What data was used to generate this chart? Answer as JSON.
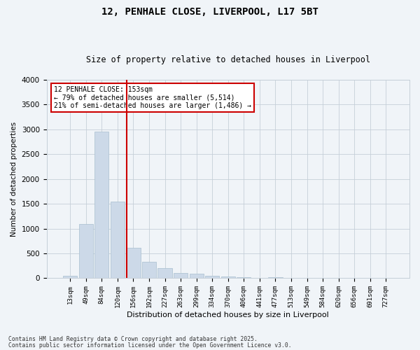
{
  "title": "12, PENHALE CLOSE, LIVERPOOL, L17 5BT",
  "subtitle": "Size of property relative to detached houses in Liverpool",
  "xlabel": "Distribution of detached houses by size in Liverpool",
  "ylabel": "Number of detached properties",
  "annotation_line1": "12 PENHALE CLOSE: 153sqm",
  "annotation_line2": "← 79% of detached houses are smaller (5,514)",
  "annotation_line3": "21% of semi-detached houses are larger (1,486) →",
  "footer_line1": "Contains HM Land Registry data © Crown copyright and database right 2025.",
  "footer_line2": "Contains public sector information licensed under the Open Government Licence v3.0.",
  "categories": [
    "13sqm",
    "49sqm",
    "84sqm",
    "120sqm",
    "156sqm",
    "192sqm",
    "227sqm",
    "263sqm",
    "299sqm",
    "334sqm",
    "370sqm",
    "406sqm",
    "441sqm",
    "477sqm",
    "513sqm",
    "549sqm",
    "584sqm",
    "620sqm",
    "656sqm",
    "691sqm",
    "727sqm"
  ],
  "values": [
    50,
    1100,
    2950,
    1550,
    620,
    330,
    210,
    100,
    95,
    55,
    35,
    20,
    10,
    20,
    5,
    3,
    2,
    1,
    1,
    1,
    1
  ],
  "bar_color": "#ccd9e8",
  "bar_edgecolor": "#a8bfce",
  "vline_color": "#cc0000",
  "vline_xindex": 3.57,
  "ylim": [
    0,
    4000
  ],
  "yticks": [
    0,
    500,
    1000,
    1500,
    2000,
    2500,
    3000,
    3500,
    4000
  ],
  "background_color": "#f0f4f8",
  "grid_color": "#c5cfd8",
  "title_fontsize": 10,
  "subtitle_fontsize": 8.5
}
